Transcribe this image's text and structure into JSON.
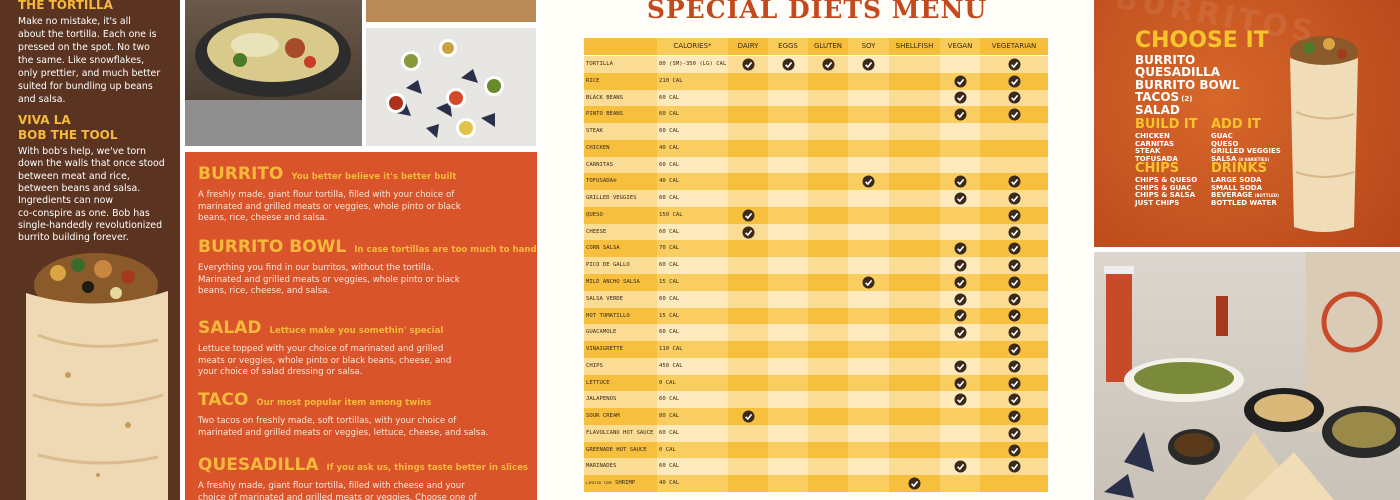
{
  "left_panel": {
    "heading1": "THE TORTILLA",
    "paragraph1": [
      "Make no mistake, it's all",
      "about the tortilla. Each one is",
      "pressed on the spot. No two",
      "the same. Like snowflakes,",
      "only prettier, and much better",
      "suited for bundling up beans",
      "and salsa."
    ],
    "heading2": [
      "VIVA LA",
      "BOB THE TOOL"
    ],
    "paragraph2": [
      "With bob's help, we've torn",
      "down the walls that once stood",
      "between meat and rice,",
      "between beans and salsa.",
      "Ingredients can now",
      "co-conspire as one. Bob has",
      "single-handedly revolutionized",
      "burrito building forever."
    ]
  },
  "menu_panel": {
    "items": [
      {
        "name": "BURRITO",
        "tagline": "You better believe it's better built",
        "description": [
          "A freshly made, giant flour tortilla, filled with your choice of",
          "marinated and grilled meats or veggies, whole pinto or black",
          "beans, rice, cheese and salsa."
        ]
      },
      {
        "name": "BURRITO BOWL",
        "tagline": "In case tortillas are too much to handle...",
        "description": [
          "Everything you find in our burritos, without the tortilla.",
          "Marinated and grilled meats or veggies, whole pinto or black",
          "beans, rice, cheese, and salsa."
        ]
      },
      {
        "name": "SALAD",
        "tagline": "Lettuce make you somethin' special",
        "description": [
          "Lettuce topped with your choice of marinated and grilled",
          "meats or veggies, whole pinto or black beans, cheese, and",
          "your choice of salad dressing or salsa."
        ]
      },
      {
        "name": "TACO",
        "tagline": "Our most popular item among twins",
        "description": [
          "Two tacos on freshly made, soft tortillas, with your choice of",
          "marinated and grilled meats or veggies, lettuce, cheese, and salsa."
        ]
      },
      {
        "name": "QUESADILLA",
        "tagline": "If you ask us, things taste better in slices",
        "description": [
          "A freshly made, giant flour tortilla, filled with cheese and your",
          "choice of marinated and grilled meats or veggies. Choose one of"
        ]
      }
    ]
  },
  "diet_menu": {
    "title": "SPECIAL DIETS MENU",
    "columns": [
      "CALORIES*",
      "DAIRY",
      "EGGS",
      "GLUTEN",
      "SOY",
      "SHELLFISH",
      "VEGAN",
      "VEGETARIAN"
    ],
    "rows": [
      {
        "item": "TORTILLA",
        "calories": "80 (SM)-350 (LG) CAL",
        "checks": [
          true,
          true,
          true,
          true,
          false,
          false,
          true
        ]
      },
      {
        "item": "RICE",
        "calories": "210 CAL",
        "checks": [
          false,
          false,
          false,
          false,
          false,
          true,
          true
        ]
      },
      {
        "item": "BLACK BEANS",
        "calories": "60 CAL",
        "checks": [
          false,
          false,
          false,
          false,
          false,
          true,
          true
        ]
      },
      {
        "item": "PINTO BEANS",
        "calories": "60 CAL",
        "checks": [
          false,
          false,
          false,
          false,
          false,
          true,
          true
        ]
      },
      {
        "item": "STEAK",
        "calories": "60 CAL",
        "checks": [
          false,
          false,
          false,
          false,
          false,
          false,
          false
        ]
      },
      {
        "item": "CHICKEN",
        "calories": "40 CAL",
        "checks": [
          false,
          false,
          false,
          false,
          false,
          false,
          false
        ]
      },
      {
        "item": "CARNITAS",
        "calories": "60 CAL",
        "checks": [
          false,
          false,
          false,
          false,
          false,
          false,
          false
        ]
      },
      {
        "item": "TOFUSADA®",
        "calories": "40 CAL",
        "checks": [
          false,
          false,
          false,
          true,
          false,
          true,
          true
        ]
      },
      {
        "item": "GRILLED VEGGIES",
        "calories": "60 CAL",
        "checks": [
          false,
          false,
          false,
          false,
          false,
          true,
          true
        ]
      },
      {
        "item": "QUESO",
        "calories": "150 CAL",
        "checks": [
          true,
          false,
          false,
          false,
          false,
          false,
          true
        ]
      },
      {
        "item": "CHEESE",
        "calories": "60 CAL",
        "checks": [
          true,
          false,
          false,
          false,
          false,
          false,
          true
        ]
      },
      {
        "item": "CORN SALSA",
        "calories": "70 CAL",
        "checks": [
          false,
          false,
          false,
          false,
          false,
          true,
          true
        ]
      },
      {
        "item": "PICO DE GALLO",
        "calories": "60 CAL",
        "checks": [
          false,
          false,
          false,
          false,
          false,
          true,
          true
        ]
      },
      {
        "item": "MILD ANCHO SALSA",
        "calories": "15 CAL",
        "checks": [
          false,
          false,
          false,
          true,
          false,
          true,
          true
        ]
      },
      {
        "item": "SALSA VERDE",
        "calories": "60 CAL",
        "checks": [
          false,
          false,
          false,
          false,
          false,
          true,
          true
        ]
      },
      {
        "item": "HOT TOMATILLO",
        "calories": "15 CAL",
        "checks": [
          false,
          false,
          false,
          false,
          false,
          true,
          true
        ]
      },
      {
        "item": "GUACAMOLE",
        "calories": "60 CAL",
        "checks": [
          false,
          false,
          false,
          false,
          false,
          true,
          true
        ]
      },
      {
        "item": "VINAIGRETTE",
        "calories": "110 CAL",
        "checks": [
          false,
          false,
          false,
          false,
          false,
          false,
          true
        ]
      },
      {
        "item": "CHIPS",
        "calories": "450 CAL",
        "checks": [
          false,
          false,
          false,
          false,
          false,
          true,
          true
        ]
      },
      {
        "item": "LETTUCE",
        "calories": "0 CAL",
        "checks": [
          false,
          false,
          false,
          false,
          false,
          true,
          true
        ]
      },
      {
        "item": "JALAPENOS",
        "calories": "60 CAL",
        "checks": [
          false,
          false,
          false,
          false,
          false,
          true,
          true
        ]
      },
      {
        "item": "SOUR CREAM",
        "calories": "80 CAL",
        "checks": [
          true,
          false,
          false,
          false,
          false,
          false,
          true
        ]
      },
      {
        "item": "FLAVOLCANO HOT SAUCE",
        "calories": "60 CAL",
        "checks": [
          false,
          false,
          false,
          false,
          false,
          false,
          true
        ]
      },
      {
        "item": "GREENADE HOT SAUCE",
        "calories": "0 CAL",
        "checks": [
          false,
          false,
          false,
          false,
          false,
          false,
          true
        ]
      },
      {
        "item": "MARINADES",
        "calories": "60 CAL",
        "checks": [
          false,
          false,
          false,
          false,
          false,
          true,
          true
        ]
      },
      {
        "item": "SHRIMP",
        "tag": "LIMITED TIME",
        "calories": "40 CAL",
        "checks": [
          false,
          false,
          false,
          false,
          true,
          false,
          false
        ]
      }
    ]
  },
  "order_panel": {
    "watermark": "BURRITOS",
    "title": "CHOOSE IT",
    "entrees": [
      {
        "name": "BURRITO"
      },
      {
        "name": "QUESADILLA"
      },
      {
        "name": "BURRITO BOWL"
      },
      {
        "name": "TACOS",
        "note": "(2)"
      },
      {
        "name": "SALAD"
      }
    ],
    "sections": [
      {
        "title": "BUILD IT",
        "items": [
          {
            "name": "CHICKEN"
          },
          {
            "name": "CARNITAS"
          },
          {
            "name": "STEAK"
          },
          {
            "name": "TOFUSADA"
          }
        ]
      },
      {
        "title": "ADD IT",
        "items": [
          {
            "name": "GUAC"
          },
          {
            "name": "QUESO"
          },
          {
            "name": "GRILLED VEGGIES"
          },
          {
            "name": "SALSA",
            "note": "(8 VARIETIES)"
          }
        ]
      },
      {
        "title": "CHIPS",
        "items": [
          {
            "name": "CHIPS & QUESO"
          },
          {
            "name": "CHIPS & GUAC"
          },
          {
            "name": "CHIPS & SALSA"
          },
          {
            "name": "JUST CHIPS"
          }
        ]
      },
      {
        "title": "DRINKS",
        "items": [
          {
            "name": "LARGE SODA"
          },
          {
            "name": "SMALL SODA"
          },
          {
            "name": "BEVERAGE",
            "note": "(BOTTLED)"
          },
          {
            "name": "BOTTLED WATER"
          }
        ]
      }
    ]
  }
}
